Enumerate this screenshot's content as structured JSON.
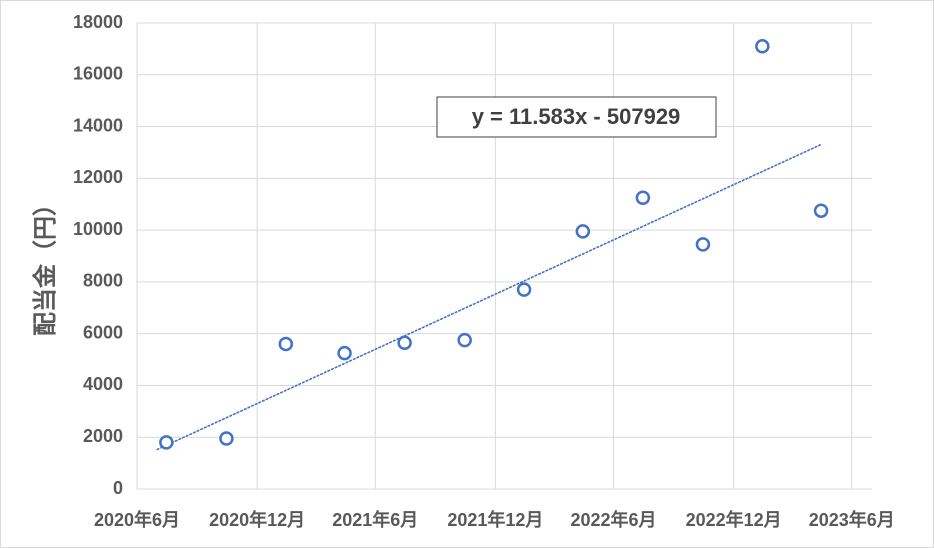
{
  "chart_data": {
    "type": "scatter",
    "ylabel": "配当金（円）",
    "ylim": [
      0,
      18000
    ],
    "yticks": [
      0,
      2000,
      4000,
      6000,
      8000,
      10000,
      12000,
      14000,
      16000,
      18000
    ],
    "xlim": [
      "2020-05-01",
      "2023-06-01"
    ],
    "xticks": [
      {
        "date": "2020-05-01",
        "label": "2020年6月"
      },
      {
        "date": "2020-11-01",
        "label": "2020年12月"
      },
      {
        "date": "2021-05-01",
        "label": "2021年6月"
      },
      {
        "date": "2021-11-01",
        "label": "2021年12月"
      },
      {
        "date": "2022-05-01",
        "label": "2022年6月"
      },
      {
        "date": "2022-11-01",
        "label": "2022年12月"
      },
      {
        "date": "2023-05-01",
        "label": "2023年6月"
      }
    ],
    "points": [
      {
        "x": "2020-06-15",
        "y": 1800
      },
      {
        "x": "2020-09-15",
        "y": 1950
      },
      {
        "x": "2020-12-15",
        "y": 5600
      },
      {
        "x": "2021-03-15",
        "y": 5250
      },
      {
        "x": "2021-06-15",
        "y": 5650
      },
      {
        "x": "2021-09-15",
        "y": 5750
      },
      {
        "x": "2021-12-15",
        "y": 7700
      },
      {
        "x": "2022-03-15",
        "y": 9950
      },
      {
        "x": "2022-06-15",
        "y": 11250
      },
      {
        "x": "2022-09-15",
        "y": 9450
      },
      {
        "x": "2022-12-15",
        "y": 17100
      },
      {
        "x": "2023-03-15",
        "y": 10750
      }
    ],
    "marker_color": "#4472c4",
    "trendline": {
      "equation": "y = 11.583x - 507929",
      "slope": 11.583,
      "intercept": -507929,
      "x_start": "2020-06-01",
      "x_end": "2023-03-15",
      "color": "#4472c4"
    },
    "grid": true
  }
}
